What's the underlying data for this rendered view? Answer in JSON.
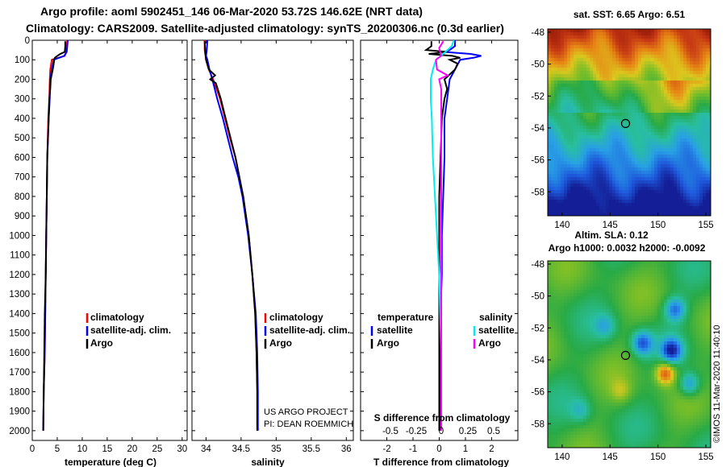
{
  "header": {
    "line1": "Argo profile: aoml 5902451_146 06-Mar-2020 53.72S 146.62E (NRT data)",
    "line2": "Climatology: CARS2009. Satellite-adjusted climatology: synTS_20200306.nc (0.3d earlier)"
  },
  "credits": {
    "project": "US ARGO PROJECT",
    "pi": "PI: DEAN ROEMMICH",
    "imos": "©IMOS 11-Mar-2020 11:40:10"
  },
  "colors": {
    "climatology": "#ff0000",
    "satellite": "#0000ff",
    "argo": "#000000",
    "sal_satellite": "#00eeee",
    "sal_argo": "#ff00ff"
  },
  "chart_data": [
    {
      "type": "line",
      "id": "temperature",
      "xlabel": "temperature (deg C)",
      "ylabel": "",
      "xlim": [
        0,
        31
      ],
      "ylim": [
        2050,
        0
      ],
      "x_ticks": [
        0,
        5,
        10,
        15,
        20,
        25,
        30
      ],
      "y_ticks": [
        0,
        100,
        200,
        300,
        400,
        500,
        600,
        700,
        800,
        900,
        1000,
        1100,
        1200,
        1300,
        1400,
        1500,
        1600,
        1700,
        1800,
        1900,
        2000
      ],
      "legend": [
        "climatology",
        "satellite-adj. clim.",
        "Argo"
      ],
      "series": [
        {
          "name": "climatology",
          "color": "#ff0000",
          "depth": [
            0,
            30,
            60,
            80,
            100,
            150,
            200,
            300,
            400,
            600,
            800,
            1000,
            1200,
            1400,
            1600,
            1800,
            2000
          ],
          "values": [
            7.0,
            6.9,
            6.8,
            6.5,
            3.9,
            3.6,
            3.5,
            3.4,
            3.2,
            3.0,
            2.9,
            2.8,
            2.7,
            2.6,
            2.5,
            2.3,
            2.2
          ]
        },
        {
          "name": "satellite-adj. clim.",
          "color": "#0000ff",
          "depth": [
            0,
            30,
            60,
            80,
            100,
            150,
            200,
            300,
            400,
            600,
            800,
            1000,
            1200,
            1400,
            1600,
            1800,
            2000
          ],
          "values": [
            7.1,
            7.0,
            6.9,
            6.4,
            4.3,
            3.9,
            3.6,
            3.5,
            3.3,
            3.0,
            2.9,
            2.8,
            2.7,
            2.6,
            2.5,
            2.3,
            2.2
          ]
        },
        {
          "name": "Argo",
          "color": "#000000",
          "depth": [
            5,
            30,
            60,
            70,
            80,
            90,
            100,
            120,
            150,
            200,
            250,
            300,
            400,
            600,
            800,
            1000,
            1200,
            1400,
            1600,
            1800,
            2000
          ],
          "values": [
            6.6,
            6.6,
            6.5,
            5.6,
            5.0,
            4.5,
            4.4,
            4.3,
            4.1,
            3.7,
            3.6,
            3.4,
            3.3,
            3.0,
            2.9,
            2.8,
            2.7,
            2.5,
            2.4,
            2.3,
            2.2
          ]
        }
      ]
    },
    {
      "type": "line",
      "id": "salinity",
      "xlabel": "salinity",
      "xlim": [
        33.8,
        36.1
      ],
      "ylim": [
        2050,
        0
      ],
      "x_ticks": [
        34,
        34.5,
        35,
        35.5,
        36
      ],
      "legend": [
        "climatology",
        "satellite-adj. clim.",
        "Argo"
      ],
      "series": [
        {
          "name": "climatology",
          "color": "#ff0000",
          "depth": [
            0,
            50,
            100,
            150,
            200,
            300,
            400,
            500,
            600,
            800,
            1000,
            1200,
            1400,
            1600,
            1800,
            2000
          ],
          "values": [
            33.98,
            33.98,
            34.0,
            34.04,
            34.1,
            34.2,
            34.27,
            34.34,
            34.42,
            34.53,
            34.61,
            34.66,
            34.7,
            34.72,
            34.73,
            34.73
          ]
        },
        {
          "name": "satellite-adj. clim.",
          "color": "#0000ff",
          "depth": [
            0,
            50,
            80,
            100,
            150,
            200,
            300,
            400,
            500,
            600,
            700,
            800,
            1000,
            1200,
            1400,
            1600,
            1800,
            2000
          ],
          "values": [
            34.02,
            34.01,
            34.0,
            34.02,
            34.05,
            34.09,
            34.16,
            34.24,
            34.31,
            34.38,
            34.46,
            34.52,
            34.6,
            34.66,
            34.71,
            34.73,
            34.74,
            34.74
          ]
        },
        {
          "name": "Argo",
          "color": "#000000",
          "depth": [
            5,
            60,
            100,
            150,
            180,
            200,
            220,
            300,
            400,
            500,
            600,
            800,
            1000,
            1200,
            1400,
            1600,
            1800,
            2000
          ],
          "values": [
            33.98,
            33.99,
            34.0,
            34.04,
            34.13,
            34.06,
            34.14,
            34.21,
            34.28,
            34.35,
            34.42,
            34.53,
            34.61,
            34.66,
            34.7,
            34.72,
            34.73,
            34.73
          ]
        }
      ]
    },
    {
      "type": "line",
      "id": "differences",
      "xlabel": "T difference from climatology",
      "top_axis_label": "S difference from climatology",
      "xlim": [
        -3,
        3
      ],
      "ylim": [
        2050,
        0
      ],
      "x_ticks": [
        -2,
        -1,
        0,
        1,
        2
      ],
      "s_ticks": [
        "-0.5",
        "-0.25",
        "0",
        "0.25",
        "0.5"
      ],
      "legend_temperature": [
        "temperature",
        "satellite",
        "Argo"
      ],
      "legend_salinity": [
        "salinity",
        "satellite",
        "Argo"
      ],
      "series": [
        {
          "name": "T satellite",
          "color": "#0000ff",
          "depth": [
            0,
            30,
            50,
            60,
            70,
            80,
            90,
            100,
            150,
            200,
            300,
            400,
            600,
            800,
            1000,
            1200,
            1400,
            1600,
            1800,
            2000
          ],
          "values": [
            0.6,
            0.6,
            0.4,
            0.2,
            1.2,
            1.6,
            1.3,
            0.8,
            0.6,
            0.4,
            0.3,
            0.2,
            0.2,
            0.15,
            0.1,
            0.1,
            0.05,
            0.05,
            0.05,
            0.05
          ]
        },
        {
          "name": "T Argo",
          "color": "#000000",
          "depth": [
            5,
            30,
            50,
            60,
            70,
            80,
            90,
            100,
            120,
            150,
            200,
            250,
            300,
            400,
            600,
            800,
            1000,
            1200,
            1400,
            1600,
            1800,
            2000
          ],
          "values": [
            -0.3,
            -0.3,
            -0.5,
            0.3,
            -0.4,
            0.5,
            0.8,
            0.4,
            0.7,
            0.6,
            0.2,
            0.3,
            0.2,
            0.1,
            0.05,
            0.0,
            0.0,
            0.0,
            0.0,
            0.0,
            0.0,
            0.0
          ]
        },
        {
          "name": "S satellite",
          "color": "#00eeee",
          "depth": [
            0,
            30,
            60,
            100,
            150,
            200,
            300,
            400,
            600,
            800,
            1000,
            1200,
            1400,
            1600,
            1800,
            2000
          ],
          "values": [
            0.12,
            0.1,
            0.04,
            -0.05,
            -0.08,
            -0.1,
            -0.1,
            -0.09,
            -0.08,
            -0.06,
            -0.04,
            -0.02,
            -0.01,
            0.0,
            0.0,
            0.0
          ]
        },
        {
          "name": "S Argo",
          "color": "#ff00ff",
          "depth": [
            5,
            40,
            80,
            100,
            150,
            180,
            200,
            250,
            300,
            400,
            600,
            800,
            1000,
            1200,
            1400,
            1600,
            1800,
            2000
          ],
          "values": [
            0.02,
            -0.02,
            0.0,
            -0.05,
            -0.04,
            0.06,
            -0.02,
            0.0,
            0.0,
            0.0,
            0.0,
            0.0,
            0.0,
            0.0,
            0.0,
            0.0,
            0.0,
            0.0
          ]
        }
      ]
    },
    {
      "type": "heatmap",
      "id": "sst-map",
      "title": "sat. SST: 6.65 Argo: 6.51",
      "x_ticks": [
        140,
        145,
        150,
        155
      ],
      "y_ticks": [
        -48,
        -50,
        -52,
        -54,
        -56,
        -58
      ],
      "xlim": [
        138.5,
        155.5
      ],
      "ylim": [
        -59.5,
        -47.8
      ],
      "float_position": {
        "lon": 146.62,
        "lat": -53.72
      }
    },
    {
      "type": "heatmap",
      "id": "sla-map",
      "title_line1": "Altim. SLA: 0.12",
      "title_line2": "Argo h1000: 0.0032 h2000: -0.0092",
      "x_ticks": [
        140,
        145,
        150,
        155
      ],
      "y_ticks": [
        -48,
        -50,
        -52,
        -54,
        -56,
        -58
      ],
      "xlim": [
        138.5,
        155.5
      ],
      "ylim": [
        -59.5,
        -47.8
      ],
      "float_position": {
        "lon": 146.62,
        "lat": -53.72
      }
    }
  ]
}
